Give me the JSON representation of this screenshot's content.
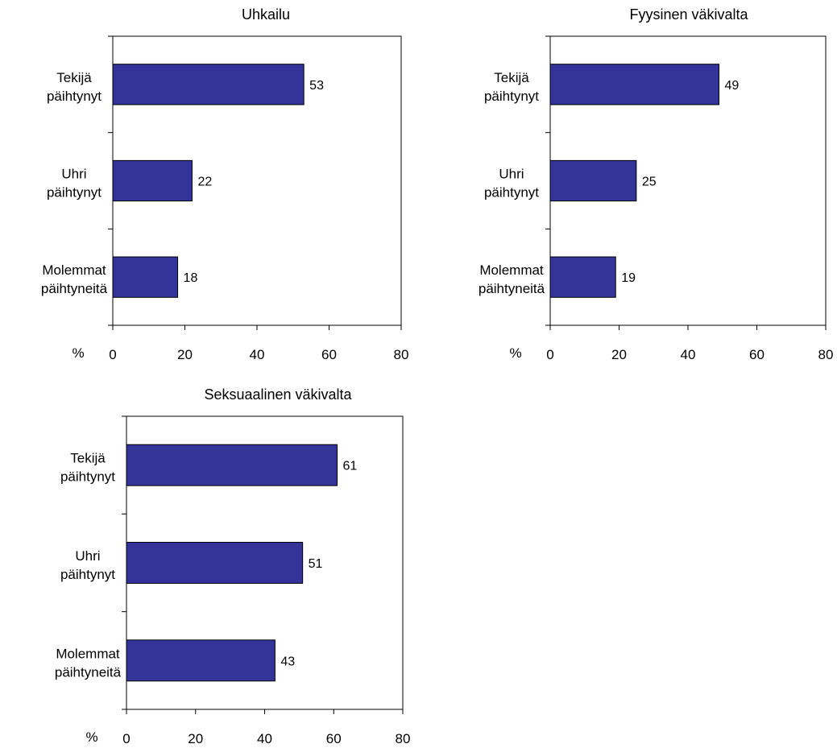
{
  "chart_data": [
    {
      "type": "bar",
      "orientation": "horizontal",
      "title": "Uhkailu",
      "categories": [
        [
          "Tekijä",
          "päihtynyt"
        ],
        [
          "Uhri",
          "päihtynyt"
        ],
        [
          "Molemmat",
          "päihtyneitä"
        ]
      ],
      "values": [
        53,
        22,
        18
      ],
      "xlim": [
        0,
        80
      ],
      "xticks": [
        "0",
        "20",
        "40",
        "60",
        "80"
      ],
      "unit_label": "%",
      "bar_color": "#333399",
      "grid": false
    },
    {
      "type": "bar",
      "orientation": "horizontal",
      "title": "Fyysinen väkivalta",
      "categories": [
        [
          "Tekijä",
          "päihtynyt"
        ],
        [
          "Uhri",
          "päihtynyt"
        ],
        [
          "Molemmat",
          "päihtyneitä"
        ]
      ],
      "values": [
        49,
        25,
        19
      ],
      "xlim": [
        0,
        80
      ],
      "xticks": [
        "0",
        "20",
        "40",
        "60",
        "80"
      ],
      "unit_label": "%",
      "bar_color": "#333399",
      "grid": false
    },
    {
      "type": "bar",
      "orientation": "horizontal",
      "title": "Seksuaalinen väkivalta",
      "categories": [
        [
          "Tekijä",
          "päihtynyt"
        ],
        [
          "Uhri",
          "päihtynyt"
        ],
        [
          "Molemmat",
          "päihtyneitä"
        ]
      ],
      "values": [
        61,
        51,
        43
      ],
      "xlim": [
        0,
        80
      ],
      "xticks": [
        "0",
        "20",
        "40",
        "60",
        "80"
      ],
      "unit_label": "%",
      "bar_color": "#333399",
      "grid": false
    }
  ]
}
